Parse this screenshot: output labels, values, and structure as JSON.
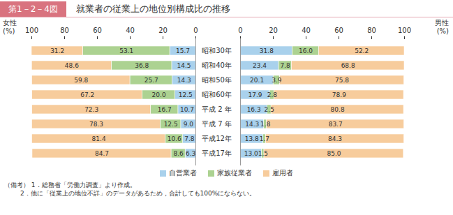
{
  "chart_data": [
    {
      "type": "bar",
      "orientation": "horizontal",
      "stacked": true,
      "data_labels": true,
      "figure_label": "第1－2－4図",
      "title": "就業者の従業上の地位別構成比の推移",
      "notes": [
        "（備考） 1．総務省「労働力調査」より作成。",
        "        2．他に「従業上の地位不詳」のデータがあるため，合計しても100%にならない。"
      ],
      "xlabel": "女性\n(%)",
      "categories": [
        "昭和30年",
        "昭和40年",
        "昭和50年",
        "昭和60年",
        "平成 2 年",
        "平成 7 年",
        "平成12年",
        "平成17年"
      ],
      "xlim": [
        100,
        0
      ],
      "xticks": [
        0,
        20,
        40,
        60,
        80,
        100
      ],
      "series": [
        {
          "name": "自営業者",
          "color": "#a9d1ec",
          "values": [
            15.7,
            14.5,
            14.3,
            12.5,
            10.7,
            9.0,
            7.8,
            6.3
          ],
          "value_labels": [
            "15.7",
            "14.5",
            "14.3",
            "12.5",
            "10.7",
            "9.0",
            "7.8",
            "6.3"
          ]
        },
        {
          "name": "家族従業者",
          "color": "#acd291",
          "values": [
            53.1,
            36.8,
            25.7,
            20.0,
            16.7,
            12.5,
            10.6,
            8.6
          ],
          "value_labels": [
            "53.1",
            "36.8",
            "25.7",
            "20.0",
            "16.7",
            "12.5",
            "10.6",
            "8.6"
          ]
        },
        {
          "name": "雇用者",
          "color": "#f7cc9c",
          "values": [
            31.2,
            48.6,
            59.8,
            67.2,
            72.3,
            78.3,
            81.4,
            84.7
          ],
          "value_labels": [
            "31.2",
            "48.6",
            "59.8",
            "67.2",
            "72.3",
            "78.3",
            "81.4",
            "84.7"
          ]
        }
      ]
    },
    {
      "type": "bar",
      "orientation": "horizontal",
      "stacked": true,
      "data_labels": true,
      "xlabel": "男性\n(%)",
      "categories": [
        "昭和30年",
        "昭和40年",
        "昭和50年",
        "昭和60年",
        "平成 2 年",
        "平成 7 年",
        "平成12年",
        "平成17年"
      ],
      "xlim": [
        0,
        100
      ],
      "xticks": [
        0,
        20,
        40,
        60,
        80,
        100
      ],
      "series": [
        {
          "name": "自営業者",
          "color": "#a9d1ec",
          "values": [
            31.8,
            23.4,
            20.1,
            17.9,
            16.3,
            14.3,
            13.8,
            13.0
          ],
          "value_labels": [
            "31.8",
            "23.4",
            "20.1",
            "17.9",
            "16.3",
            "14.3",
            "13.8",
            "13.0"
          ]
        },
        {
          "name": "家族従業者",
          "color": "#acd291",
          "values": [
            16.0,
            7.8,
            3.9,
            2.8,
            2.5,
            1.8,
            1.7,
            1.5
          ],
          "value_labels": [
            "16.0",
            "7.8",
            "3.9",
            "2.8",
            "2.5",
            "1.8",
            "1.7",
            "1.5"
          ]
        },
        {
          "name": "雇用者",
          "color": "#f7cc9c",
          "values": [
            52.2,
            68.8,
            75.8,
            78.9,
            80.8,
            83.7,
            84.3,
            85.0
          ],
          "value_labels": [
            "52.2",
            "68.8",
            "75.8",
            "78.9",
            "80.8",
            "83.7",
            "84.3",
            "85.0"
          ]
        }
      ]
    }
  ]
}
